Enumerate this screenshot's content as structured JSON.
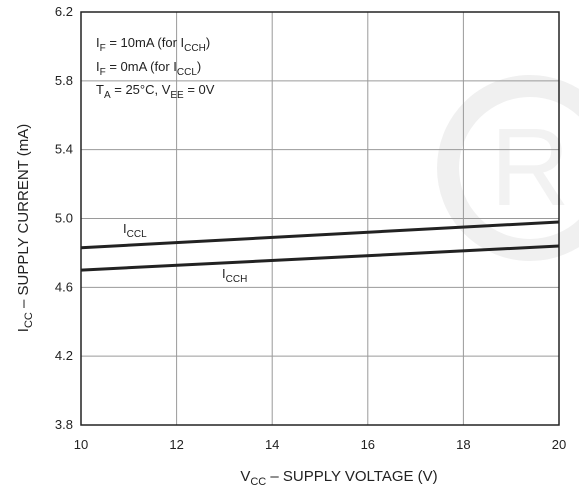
{
  "chart_data": {
    "type": "line",
    "xlabel": {
      "main": "V",
      "sub": "CC",
      "rest": " – SUPPLY VOLTAGE (V)"
    },
    "ylabel": {
      "main": "I",
      "sub": "CC",
      "rest": " – SUPPLY CURRENT (mA)"
    },
    "xlim": [
      10,
      20
    ],
    "ylim": [
      3.8,
      6.2
    ],
    "x_ticks": [
      "10",
      "12",
      "14",
      "16",
      "18",
      "20"
    ],
    "y_ticks": [
      "3.8",
      "4.2",
      "4.6",
      "5.0",
      "5.4",
      "5.8",
      "6.2"
    ],
    "grid": true,
    "conditions": [
      {
        "a": "I",
        "a_sub": "F",
        "b": " = 10mA (for I",
        "b_sub": "CCH",
        "c": ")"
      },
      {
        "a": "I",
        "a_sub": "F",
        "b": " = 0mA (for I",
        "b_sub": "CCL",
        "c": ")"
      },
      {
        "a": "T",
        "a_sub": "A",
        "b": " = 25°C, V",
        "b_sub": "EE",
        "c": " = 0V"
      }
    ],
    "series": [
      {
        "main": "I",
        "sub": "CCL",
        "x": [
          10,
          20
        ],
        "y": [
          4.83,
          4.98
        ]
      },
      {
        "main": "I",
        "sub": "CCH",
        "x": [
          10,
          20
        ],
        "y": [
          4.7,
          4.84
        ]
      }
    ]
  },
  "colors": {
    "line": "#222222",
    "grid": "#9a9a9a",
    "watermark": "#f0f0f0"
  },
  "watermark_icon": "registered-mark-icon"
}
